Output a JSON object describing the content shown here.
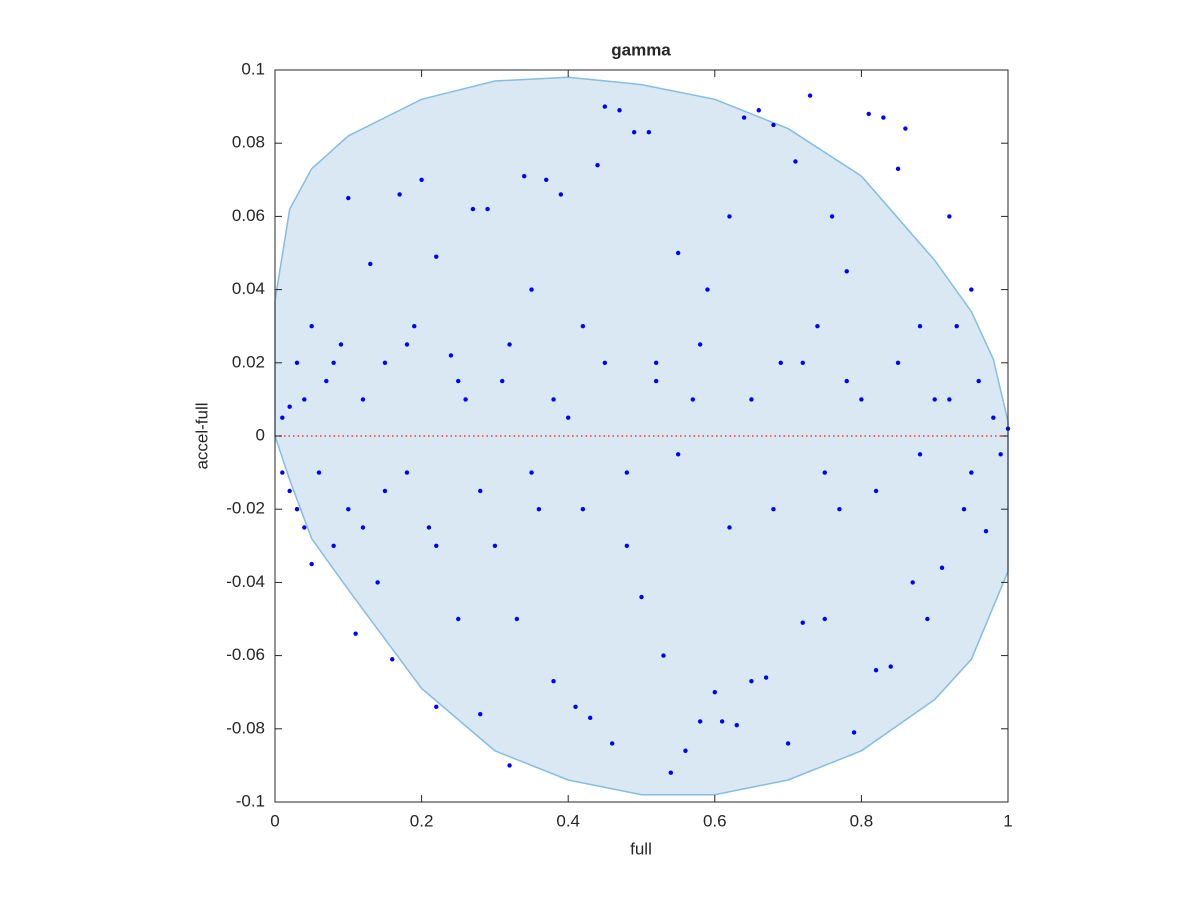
{
  "chart_data": {
    "type": "scatter",
    "title": "gamma",
    "x_label": "full",
    "y_label": "accel-full",
    "xlim": [
      0,
      1
    ],
    "ylim": [
      -0.1,
      0.1
    ],
    "xticks": [
      0,
      0.2,
      0.4,
      0.6,
      0.8,
      1
    ],
    "yticks": [
      -0.1,
      -0.08,
      -0.06,
      -0.04,
      -0.02,
      0,
      0.02,
      0.04,
      0.06,
      0.08,
      0.1
    ],
    "grid": false,
    "color": "#0000ff",
    "region": {
      "color": "#d9e8f3",
      "edge_color": "#86bde0",
      "x": [
        0,
        0.02,
        0.05,
        0.1,
        0.2,
        0.3,
        0.4,
        0.5,
        0.6,
        0.7,
        0.8,
        0.9,
        0.95,
        0.98,
        1,
        1,
        0.95,
        0.9,
        0.8,
        0.7,
        0.6,
        0.5,
        0.4,
        0.3,
        0.2,
        0.1,
        0.05,
        0.02,
        0
      ],
      "y": [
        0.037,
        0.062,
        0.073,
        0.082,
        0.092,
        0.097,
        0.098,
        0.096,
        0.092,
        0.084,
        0.071,
        0.048,
        0.034,
        0.021,
        0.004,
        -0.037,
        -0.061,
        -0.072,
        -0.086,
        -0.094,
        -0.098,
        -0.098,
        -0.094,
        -0.086,
        -0.069,
        -0.042,
        -0.028,
        -0.012,
        0
      ]
    },
    "reference_line": {
      "y": 0,
      "color": "#ff3333"
    },
    "x": [
      0.01,
      0.01,
      0.02,
      0.02,
      0.03,
      0.03,
      0.04,
      0.04,
      0.05,
      0.05,
      0.06,
      0.07,
      0.08,
      0.09,
      0.1,
      0.1,
      0.11,
      0.12,
      0.13,
      0.14,
      0.15,
      0.16,
      0.17,
      0.18,
      0.19,
      0.2,
      0.21,
      0.22,
      0.22,
      0.24,
      0.25,
      0.26,
      0.27,
      0.28,
      0.29,
      0.3,
      0.31,
      0.32,
      0.33,
      0.34,
      0.35,
      0.36,
      0.37,
      0.38,
      0.39,
      0.4,
      0.41,
      0.42,
      0.43,
      0.44,
      0.45,
      0.46,
      0.47,
      0.48,
      0.49,
      0.5,
      0.51,
      0.52,
      0.53,
      0.54,
      0.55,
      0.56,
      0.57,
      0.58,
      0.59,
      0.6,
      0.61,
      0.62,
      0.63,
      0.64,
      0.65,
      0.66,
      0.67,
      0.68,
      0.69,
      0.7,
      0.71,
      0.72,
      0.73,
      0.74,
      0.75,
      0.76,
      0.77,
      0.78,
      0.79,
      0.8,
      0.81,
      0.82,
      0.83,
      0.84,
      0.85,
      0.86,
      0.87,
      0.88,
      0.89,
      0.9,
      0.91,
      0.92,
      0.93,
      0.94,
      0.95,
      0.96,
      0.97,
      0.98,
      0.99,
      1,
      0.15,
      0.25,
      0.35,
      0.45,
      0.55,
      0.65,
      0.75,
      0.85,
      0.95,
      0.12,
      0.22,
      0.32,
      0.42,
      0.52,
      0.62,
      0.72,
      0.82,
      0.92,
      0.08,
      0.18,
      0.28,
      0.38,
      0.48,
      0.58,
      0.68,
      0.78,
      0.88
    ],
    "values": [
      0.005,
      -0.01,
      0.008,
      -0.015,
      0.02,
      -0.02,
      0.01,
      -0.025,
      0.03,
      -0.035,
      -0.01,
      0.015,
      -0.03,
      0.025,
      0.065,
      -0.02,
      -0.054,
      0.01,
      0.047,
      -0.04,
      0.02,
      -0.061,
      0.066,
      -0.01,
      0.03,
      0.07,
      -0.025,
      -0.074,
      0.049,
      0.022,
      -0.05,
      0.01,
      0.062,
      -0.076,
      0.062,
      -0.03,
      0.015,
      -0.09,
      -0.05,
      0.071,
      0.04,
      -0.02,
      0.07,
      -0.067,
      0.066,
      0.005,
      -0.074,
      0.03,
      -0.077,
      0.074,
      0.09,
      -0.084,
      0.089,
      -0.03,
      0.083,
      -0.044,
      0.083,
      0.02,
      -0.06,
      -0.092,
      0.05,
      -0.086,
      0.01,
      -0.078,
      0.04,
      -0.07,
      -0.078,
      0.06,
      -0.079,
      0.087,
      -0.067,
      0.089,
      -0.066,
      0.085,
      0.02,
      -0.084,
      0.075,
      -0.051,
      0.093,
      0.03,
      -0.05,
      0.06,
      -0.02,
      0.045,
      -0.081,
      0.01,
      0.088,
      -0.064,
      0.087,
      -0.063,
      0.073,
      0.084,
      -0.04,
      0.03,
      -0.05,
      0.01,
      -0.036,
      0.06,
      0.03,
      -0.02,
      0.04,
      0.015,
      -0.026,
      0.005,
      -0.005,
      0.002,
      -0.015,
      0.015,
      -0.01,
      0.02,
      -0.005,
      0.01,
      -0.01,
      0.02,
      -0.01,
      -0.025,
      -0.03,
      0.025,
      -0.02,
      0.015,
      -0.025,
      0.02,
      -0.015,
      0.01,
      0.02,
      0.025,
      -0.015,
      0.01,
      -0.01,
      0.025,
      -0.02,
      0.015,
      -0.005
    ]
  }
}
